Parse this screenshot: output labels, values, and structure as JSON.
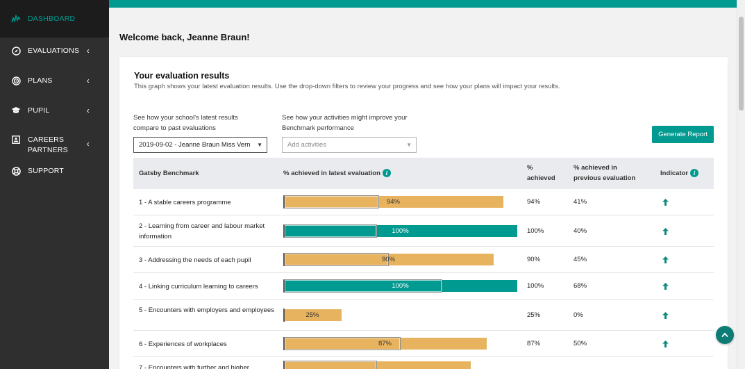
{
  "sidebar": {
    "items": [
      {
        "label": "DASHBOARD",
        "icon": "chart-icon",
        "active": true
      },
      {
        "label": "EVALUATIONS",
        "icon": "compass-icon",
        "has_chevron": true
      },
      {
        "label": "PLANS",
        "icon": "target-icon",
        "has_chevron": true
      },
      {
        "label": "PUPIL",
        "icon": "graduation-cap-icon",
        "has_chevron": true
      },
      {
        "label": "CAREERS PARTNERS",
        "icon": "address-card-icon",
        "has_chevron": true
      },
      {
        "label": "SUPPORT",
        "icon": "lifebuoy-icon",
        "has_chevron": false
      }
    ]
  },
  "welcome": "Welcome back, Jeanne Braun!",
  "card": {
    "title": "Your evaluation results",
    "subtitle": "This graph shows your latest evaluation results. Use the drop-down filters to review your progress and see how your plans will impact your results.",
    "filter1_label": "See how your school's latest results compare to past evaluations",
    "filter1_value": "2019-09-02 - Jeanne Braun Miss Vern",
    "filter2_label": "See how your activities might improve your Benchmark performance",
    "filter2_placeholder": "Add activities",
    "generate_button": "Generate Report"
  },
  "table": {
    "headers": {
      "benchmark": "Gatsby Benchmark",
      "latest": "% achieved in latest evaluation",
      "achieved": "% achieved",
      "previous": "% achieved in previous evaluation",
      "indicator": "Indicator"
    },
    "rows": [
      {
        "name": "1 - A stable careers programme",
        "latest": 94,
        "previous": 41,
        "pct_label": "94%",
        "prev_label": "41%",
        "bar_label": "94%",
        "color": "#e8b35f",
        "indicator": "up-arrow-icon"
      },
      {
        "name": "2 - Learning from career and labour market information",
        "latest": 100,
        "previous": 40,
        "pct_label": "100%",
        "prev_label": "40%",
        "bar_label": "100%",
        "color": "#009a90",
        "indicator": "up-arrow-icon"
      },
      {
        "name": "3 - Addressing the needs of each pupil",
        "latest": 90,
        "previous": 45,
        "pct_label": "90%",
        "prev_label": "45%",
        "bar_label": "90%",
        "color": "#e8b35f",
        "indicator": "up-arrow-icon"
      },
      {
        "name": "4 - Linking curriculum learning to careers",
        "latest": 100,
        "previous": 68,
        "pct_label": "100%",
        "prev_label": "68%",
        "bar_label": "100%",
        "color": "#009a90",
        "indicator": "up-arrow-icon"
      },
      {
        "name": "5 - Encounters with employers and employees",
        "latest": 25,
        "previous": 0,
        "pct_label": "25%",
        "prev_label": "0%",
        "bar_label": "25%",
        "color": "#e8b35f",
        "indicator": "up-arrow-icon"
      },
      {
        "name": "6 - Experiences of workplaces",
        "latest": 87,
        "previous": 50,
        "pct_label": "87%",
        "prev_label": "50%",
        "bar_label": "87%",
        "color": "#e8b35f",
        "indicator": "up-arrow-icon"
      },
      {
        "name": "7 - Encounters with further and higher",
        "latest": 80,
        "previous": 40,
        "pct_label": "",
        "prev_label": "",
        "bar_label": "",
        "color": "#e8b35f",
        "indicator": ""
      }
    ]
  },
  "colors": {
    "accent": "#009a90",
    "orange": "#e8b35f",
    "sidebar": "#2f2f2f"
  }
}
